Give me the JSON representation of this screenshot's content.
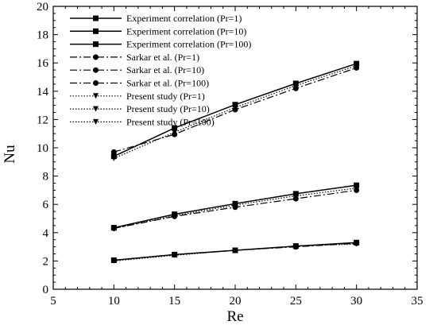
{
  "chart_data": {
    "type": "line",
    "title": "",
    "xlabel": "Re",
    "ylabel": "Nu",
    "xlim": [
      5,
      35
    ],
    "ylim": [
      0,
      20
    ],
    "xticks": [
      5,
      10,
      15,
      20,
      25,
      30,
      35
    ],
    "yticks": [
      0,
      2,
      4,
      6,
      8,
      10,
      12,
      14,
      16,
      18,
      20
    ],
    "grid": false,
    "legend_position": "top-left",
    "x": [
      10,
      15,
      20,
      25,
      30
    ],
    "series": [
      {
        "name": "Experiment correlation (Pr=1)",
        "line": "solid",
        "marker": "square",
        "values": [
          2.05,
          2.45,
          2.75,
          3.05,
          3.3
        ]
      },
      {
        "name": "Experiment correlation (Pr=10)",
        "line": "solid",
        "marker": "square",
        "values": [
          4.35,
          5.3,
          6.05,
          6.75,
          7.35
        ]
      },
      {
        "name": "Experiment correlation (Pr=100)",
        "line": "solid",
        "marker": "square",
        "values": [
          9.4,
          11.4,
          13.05,
          14.55,
          15.95
        ]
      },
      {
        "name": "Sarkar et al. (Pr=1)",
        "line": "dashdot",
        "marker": "circle",
        "values": [
          2.05,
          2.45,
          2.75,
          3.0,
          3.25
        ]
      },
      {
        "name": "Sarkar et al. (Pr=10)",
        "line": "dashdot",
        "marker": "circle",
        "values": [
          4.3,
          5.15,
          5.8,
          6.4,
          7.0
        ]
      },
      {
        "name": "Sarkar et al. (Pr=100)",
        "line": "dashdot",
        "marker": "circle",
        "values": [
          9.7,
          10.95,
          12.7,
          14.2,
          15.65
        ]
      },
      {
        "name": "Present study (Pr=1)",
        "line": "dotted",
        "marker": "triangle-down",
        "values": [
          2.0,
          2.4,
          2.75,
          3.05,
          3.2
        ]
      },
      {
        "name": "Present study (Pr=10)",
        "line": "dotted",
        "marker": "triangle-down",
        "values": [
          4.3,
          5.2,
          5.95,
          6.6,
          7.15
        ]
      },
      {
        "name": "Present study (Pr=100)",
        "line": "dotted",
        "marker": "triangle-down",
        "values": [
          9.25,
          11.1,
          12.85,
          14.4,
          15.8
        ]
      }
    ]
  }
}
